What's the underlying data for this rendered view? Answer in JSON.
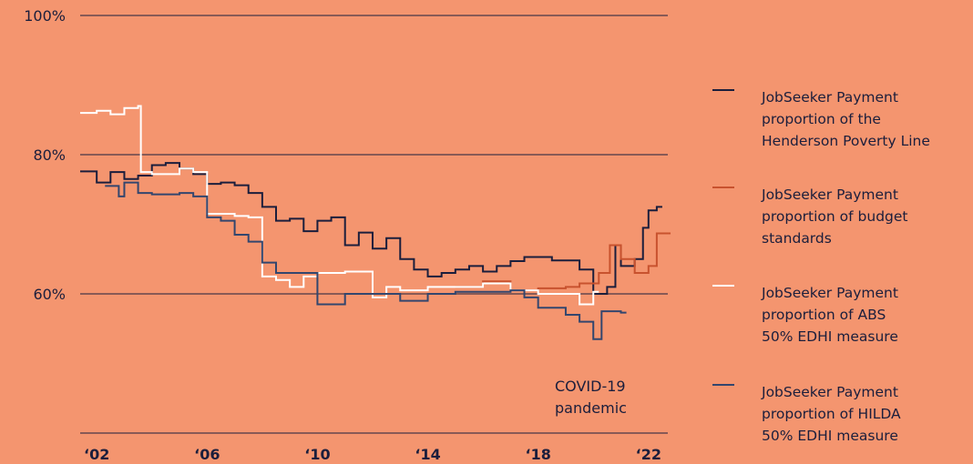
{
  "chart_data": {
    "type": "line",
    "annotation": "COVID-19\npandemic",
    "xlim": [
      2001.4,
      2022.7
    ],
    "xticks": [
      {
        "value": 2002,
        "label": "‘02"
      },
      {
        "value": 2006,
        "label": "‘06"
      },
      {
        "value": 2010,
        "label": "‘10"
      },
      {
        "value": 2014,
        "label": "‘14"
      },
      {
        "value": 2018,
        "label": "‘18"
      },
      {
        "value": 2022,
        "label": "‘22"
      }
    ],
    "ylim": [
      40,
      100
    ],
    "yticks": [
      {
        "value": 60,
        "label": "60%"
      },
      {
        "value": 80,
        "label": "80%"
      },
      {
        "value": 100,
        "label": "100%"
      }
    ],
    "grid": true,
    "series": [
      {
        "name": "JobSeeker Payment\nproportion of the\nHenderson Poverty Line",
        "color": "#1b1e3c",
        "x": [
          2001.4,
          2002,
          2002.5,
          2003,
          2003.5,
          2004,
          2004.5,
          2005,
          2005.5,
          2006,
          2006.5,
          2007,
          2007.5,
          2008,
          2008.5,
          2009,
          2009.5,
          2010,
          2010.5,
          2011,
          2011.5,
          2012,
          2012.5,
          2013,
          2013.5,
          2014,
          2014.5,
          2015,
          2015.5,
          2016,
          2016.5,
          2017,
          2017.5,
          2018,
          2018.5,
          2019,
          2019.5,
          2020,
          2020.5,
          2020.8,
          2021,
          2021.5,
          2021.8,
          2022,
          2022.3
        ],
        "values": [
          77.6,
          76,
          77.5,
          76.5,
          77,
          78.5,
          78.8,
          78,
          77.2,
          75.8,
          76,
          75.6,
          74.5,
          72.5,
          70.5,
          70.8,
          69,
          70.5,
          71,
          67,
          68.8,
          66.5,
          68,
          65,
          63.5,
          62.5,
          63,
          63.5,
          64,
          63.2,
          64,
          64.7,
          65.3,
          65.3,
          64.8,
          64.8,
          63.5,
          60,
          61,
          67,
          64,
          65,
          69.5,
          72,
          72.5
        ]
      },
      {
        "name": "JobSeeker Payment\nproportion of budget\nstandards",
        "color": "#c8522e",
        "x": [
          2015,
          2016,
          2017,
          2018,
          2019,
          2019.5,
          2020.2,
          2020.6,
          2021,
          2021.5,
          2022,
          2022.3,
          2022.6
        ],
        "values": [
          61,
          61.8,
          60.5,
          60.8,
          61,
          61.5,
          63,
          67,
          65,
          63,
          64,
          68.7,
          68.7
        ]
      },
      {
        "name": "JobSeeker Payment\nproportion of ABS\n50% EDHI measure",
        "color": "#ffffff",
        "x": [
          2001.4,
          2002,
          2002.5,
          2003,
          2003.5,
          2003.6,
          2004,
          2005,
          2005.5,
          2006,
          2007,
          2007.5,
          2008,
          2008.5,
          2009,
          2009.5,
          2010,
          2011,
          2012,
          2012.5,
          2013,
          2014,
          2015,
          2016,
          2017,
          2018,
          2019,
          2019.5,
          2020
        ],
        "values": [
          86,
          86.3,
          85.8,
          86.7,
          87,
          77.5,
          77.2,
          78,
          77.5,
          71.5,
          71.2,
          71,
          62.5,
          62,
          61,
          62.5,
          63,
          63.2,
          59.5,
          61,
          60.5,
          61,
          61,
          61.5,
          60.5,
          60,
          60,
          58.5,
          60.3
        ]
      },
      {
        "name": "JobSeeker Payment\nproportion of HILDA\n50% EDHI measure",
        "color": "#33466e",
        "x": [
          2002.3,
          2002.8,
          2003,
          2003.5,
          2004,
          2005,
          2005.5,
          2006,
          2006.5,
          2007,
          2007.5,
          2008,
          2008.5,
          2009,
          2009.5,
          2010,
          2010.5,
          2011,
          2012,
          2013,
          2014,
          2015,
          2016,
          2017,
          2017.5,
          2018,
          2019,
          2019.5,
          2020,
          2020.3,
          2021
        ],
        "values": [
          75.5,
          74,
          76,
          74.5,
          74.3,
          74.5,
          74,
          71,
          70.5,
          68.5,
          67.5,
          64.5,
          63,
          63,
          63,
          58.5,
          58.5,
          60,
          60,
          59,
          60,
          60.3,
          60.3,
          60.5,
          59.5,
          58,
          57,
          56,
          53.5,
          57.5,
          57.3
        ]
      }
    ]
  }
}
